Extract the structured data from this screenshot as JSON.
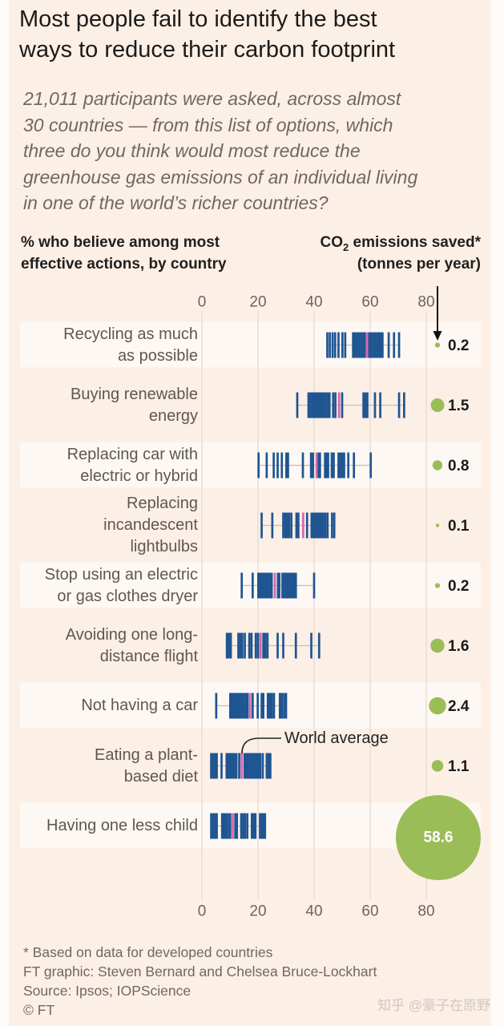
{
  "title_lines": [
    "Most people fail to identify the best",
    "ways to reduce their carbon footprint"
  ],
  "subtitle_lines": [
    "21,011 participants were asked, across almost",
    "30 countries — from this list of options, which",
    "three do you think would most reduce the",
    "greenhouse gas emissions of an individual living",
    "in one of the world’s richer countries?"
  ],
  "headers": {
    "left_lines": [
      "% who believe among most",
      "effective actions, by country"
    ],
    "right": {
      "co": "CO",
      "sub": "2",
      "rest": " emissions saved*",
      "line2": "(tonnes per year)"
    }
  },
  "colors": {
    "country_tick": "#1f5591",
    "world_average": "#d966b0",
    "co2_circle": "#9bbd57",
    "band": "#fdf8f3",
    "grid": "#e3d8cf"
  },
  "chart_data": {
    "type": "scatter",
    "subtype": "barcode strip plot with bubble column",
    "title": "Most people fail to identify the best ways to reduce their carbon footprint",
    "xlabel": "% who believe among most effective actions, by country",
    "ylabel": "",
    "xlim": [
      0,
      80
    ],
    "xticks": [
      0,
      20,
      40,
      60,
      80
    ],
    "xtick_labels": [
      "0",
      "20",
      "40",
      "60",
      "80"
    ],
    "grid": true,
    "annotation": "World average",
    "bubble_label": "CO2 emissions saved* (tonnes per year)",
    "rows": [
      {
        "label_lines": [
          "Recycling as much",
          "as possible"
        ],
        "world_average": 58.9,
        "co2_saved": 0.2,
        "co2_label": "0.2",
        "country_values": [
          44.7,
          45.6,
          46.6,
          47.5,
          48.7,
          50.1,
          51.1,
          53.9,
          54.6,
          55.3,
          56.0,
          56.7,
          57.4,
          58.1,
          59.6,
          60.3,
          61.0,
          61.7,
          62.4,
          63.1,
          63.8,
          64.4,
          66.6,
          68.5,
          70.3
        ]
      },
      {
        "label_lines": [
          "Buying renewable",
          "energy"
        ],
        "world_average": 48.9,
        "co2_saved": 1.5,
        "co2_label": "1.5",
        "country_values": [
          34.0,
          38.0,
          38.7,
          39.4,
          40.1,
          40.8,
          41.5,
          42.2,
          42.9,
          43.6,
          44.3,
          45.0,
          45.5,
          46.8,
          47.6,
          50.0,
          57.6,
          58.3,
          59.0,
          61.7,
          63.6,
          70.3,
          72.1
        ]
      },
      {
        "label_lines": [
          "Replacing car with",
          "electric or hybrid"
        ],
        "world_average": 40.9,
        "co2_saved": 0.8,
        "co2_label": "0.8",
        "country_values": [
          20.2,
          23.1,
          25.6,
          27.0,
          28.5,
          30.1,
          30.7,
          36.0,
          38.9,
          39.6,
          41.5,
          42.1,
          43.9,
          44.5,
          45.0,
          46.3,
          47.0,
          48.7,
          49.3,
          50.0,
          50.7,
          52.2,
          54.2,
          60.2
        ]
      },
      {
        "label_lines": [
          "Replacing",
          "incandescent",
          "lightbulbs"
        ],
        "world_average": 36.1,
        "co2_saved": 0.1,
        "co2_label": "0.1",
        "country_values": [
          21.3,
          25.1,
          29.0,
          29.7,
          30.4,
          31.1,
          31.9,
          33.7,
          34.4,
          37.5,
          39.1,
          39.8,
          40.5,
          41.2,
          41.9,
          42.6,
          43.3,
          44.0,
          44.8,
          46.4,
          47.2
        ]
      },
      {
        "label_lines": [
          "Stop using an electric",
          "or gas clothes dryer"
        ],
        "world_average": 26.0,
        "co2_saved": 0.2,
        "co2_label": "0.2",
        "country_values": [
          14.2,
          18.1,
          20.1,
          20.8,
          21.5,
          22.2,
          22.9,
          23.6,
          24.3,
          24.9,
          27.1,
          27.6,
          28.7,
          29.4,
          30.1,
          30.8,
          31.5,
          32.2,
          32.9,
          33.5,
          40.0
        ]
      },
      {
        "label_lines": [
          "Avoiding one long-",
          "distance flight"
        ],
        "world_average": 20.9,
        "co2_saved": 1.6,
        "co2_label": "1.6",
        "country_values": [
          8.9,
          9.6,
          10.3,
          13.0,
          13.7,
          14.4,
          15.3,
          16.9,
          17.7,
          19.2,
          20.0,
          21.9,
          22.6,
          23.4,
          27.0,
          29.0,
          33.5,
          39.0,
          41.8
        ]
      },
      {
        "label_lines": [
          "Not having a car"
        ],
        "world_average": 17.2,
        "co2_saved": 2.4,
        "co2_label": "2.4",
        "country_values": [
          5.1,
          10.1,
          10.8,
          11.5,
          12.2,
          12.9,
          13.6,
          14.3,
          15.0,
          15.7,
          16.3,
          18.1,
          19.9,
          21.3,
          21.9,
          23.5,
          24.2,
          24.9,
          25.7,
          27.8,
          28.5,
          29.3,
          30.0
        ]
      },
      {
        "label_lines": [
          "Eating a plant-",
          "based diet"
        ],
        "world_average": 14.2,
        "co2_saved": 1.1,
        "co2_label": "1.1",
        "country_values": [
          3.3,
          4.0,
          4.7,
          5.3,
          7.0,
          8.8,
          9.5,
          10.2,
          10.9,
          11.6,
          12.3,
          13.3,
          15.2,
          15.9,
          16.6,
          17.3,
          18.0,
          18.7,
          19.4,
          20.1,
          20.8,
          21.7,
          23.1,
          23.8,
          24.4
        ]
      },
      {
        "label_lines": [
          "Having one less child"
        ],
        "world_average": 11.0,
        "co2_saved": 58.6,
        "co2_label": "58.6",
        "country_values": [
          3.3,
          4.0,
          4.7,
          5.3,
          7.2,
          7.9,
          8.6,
          9.3,
          10.1,
          11.9,
          12.5,
          14.0,
          14.7,
          15.4,
          16.2,
          17.8,
          18.5,
          19.1,
          20.7,
          21.4,
          22.0,
          22.5
        ]
      }
    ]
  },
  "footer_lines": [
    "* Based on data for developed countries",
    "FT graphic: Steven Bernard and Chelsea Bruce-Lockhart",
    "Source: Ipsos; IOPScience",
    "© FT"
  ],
  "watermark": "知乎 @豪子在原野"
}
